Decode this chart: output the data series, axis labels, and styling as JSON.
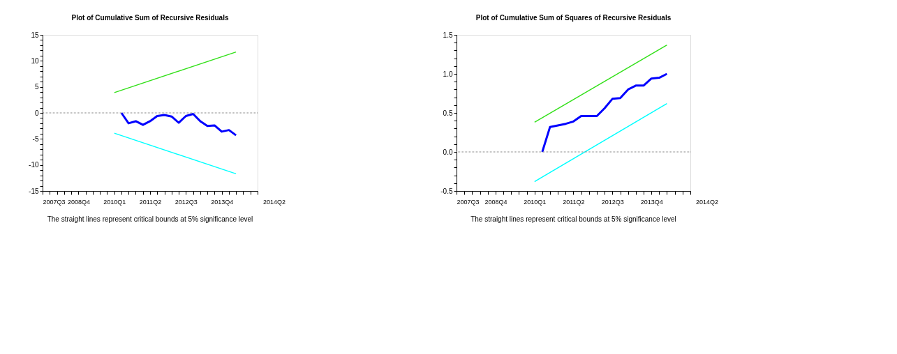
{
  "chart_data": [
    {
      "type": "line",
      "title": "Plot of Cumulative Sum of Recursive Residuals",
      "annotations": [
        "The straight lines represent critical bounds at 5% significance level",
        "2014Q2"
      ],
      "xlim": [
        "2007-07",
        "2015-01"
      ],
      "ylim": [
        -15,
        15
      ],
      "xticks": [
        {
          "value": "2007-07",
          "label": "2007Q3"
        },
        {
          "value": "2007-10",
          "label": null
        },
        {
          "value": "2008-01",
          "label": null
        },
        {
          "value": "2008-04",
          "label": null
        },
        {
          "value": "2008-07",
          "label": null
        },
        {
          "value": "2008-10",
          "label": "2008Q4"
        },
        {
          "value": "2009-01",
          "label": null
        },
        {
          "value": "2009-04",
          "label": null
        },
        {
          "value": "2009-07",
          "label": null
        },
        {
          "value": "2009-10",
          "label": null
        },
        {
          "value": "2010-01",
          "label": "2010Q1"
        },
        {
          "value": "2010-04",
          "label": null
        },
        {
          "value": "2010-07",
          "label": null
        },
        {
          "value": "2010-10",
          "label": null
        },
        {
          "value": "2011-01",
          "label": null
        },
        {
          "value": "2011-04",
          "label": "2011Q2"
        },
        {
          "value": "2011-07",
          "label": null
        },
        {
          "value": "2011-10",
          "label": null
        },
        {
          "value": "2012-01",
          "label": null
        },
        {
          "value": "2012-04",
          "label": null
        },
        {
          "value": "2012-07",
          "label": "2012Q3"
        },
        {
          "value": "2012-10",
          "label": null
        },
        {
          "value": "2013-01",
          "label": null
        },
        {
          "value": "2013-04",
          "label": null
        },
        {
          "value": "2013-07",
          "label": null
        },
        {
          "value": "2013-10",
          "label": "2013Q4"
        },
        {
          "value": "2014-01",
          "label": null
        },
        {
          "value": "2014-04",
          "label": null
        },
        {
          "value": "2014-07",
          "label": null
        },
        {
          "value": "2014-10",
          "label": null
        },
        {
          "value": "2015-01",
          "label": null
        }
      ],
      "yticks": [
        -15,
        {
          "value": -14,
          "label": null
        },
        {
          "value": -13,
          "label": null
        },
        {
          "value": -12,
          "label": null
        },
        {
          "value": -11,
          "label": null
        },
        -10,
        {
          "value": -9,
          "label": null
        },
        {
          "value": -8,
          "label": null
        },
        {
          "value": -7,
          "label": null
        },
        {
          "value": -6,
          "label": null
        },
        -5,
        {
          "value": -4,
          "label": null
        },
        {
          "value": -3,
          "label": null
        },
        {
          "value": -2,
          "label": null
        },
        {
          "value": -1,
          "label": null
        },
        0,
        {
          "value": 1,
          "label": null
        },
        {
          "value": 2,
          "label": null
        },
        {
          "value": 3,
          "label": null
        },
        {
          "value": 4,
          "label": null
        },
        5,
        {
          "value": 6,
          "label": null
        },
        {
          "value": 7,
          "label": null
        },
        {
          "value": 8,
          "label": null
        },
        {
          "value": 9,
          "label": null
        },
        10,
        {
          "value": 11,
          "label": null
        },
        {
          "value": 12,
          "label": null
        },
        {
          "value": 13,
          "label": null
        },
        {
          "value": 14,
          "label": null
        },
        15
      ],
      "grid": false,
      "ref_lines": [
        {
          "axis": "y",
          "value": 0,
          "color": "#808080",
          "line_style": "dotted"
        }
      ],
      "series": [
        {
          "color": "#0000ff",
          "x": [
            "2010-04",
            "2010-07",
            "2010-10",
            "2011-01",
            "2011-04",
            "2011-07",
            "2011-10",
            "2012-01",
            "2012-04",
            "2012-07",
            "2012-10",
            "2013-01",
            "2013-04",
            "2013-07",
            "2013-10",
            "2014-01",
            "2014-04"
          ],
          "values": [
            0.0,
            -2.0,
            -1.6,
            -2.3,
            -1.6,
            -0.6,
            -0.4,
            -0.7,
            -1.9,
            -0.6,
            -0.2,
            -1.6,
            -2.5,
            -2.4,
            -3.6,
            -3.3,
            -4.3
          ]
        },
        {
          "color": "#33e01a",
          "x": [
            "2010-01",
            "2014-04"
          ],
          "values": [
            3.9,
            11.7
          ]
        },
        {
          "color": "#00ffff",
          "x": [
            "2010-01",
            "2014-04"
          ],
          "values": [
            -3.9,
            -11.7
          ]
        }
      ]
    },
    {
      "type": "line",
      "title": "Plot of Cumulative Sum of Squares of Recursive Residuals",
      "annotations": [
        "The straight lines represent critical bounds at 5% significance level",
        "2014Q2"
      ],
      "xlim": [
        "2007-07",
        "2015-01"
      ],
      "ylim": [
        -0.5,
        1.5
      ],
      "xticks": [
        {
          "value": "2007-07",
          "label": "2007Q3"
        },
        {
          "value": "2007-10",
          "label": null
        },
        {
          "value": "2008-01",
          "label": null
        },
        {
          "value": "2008-04",
          "label": null
        },
        {
          "value": "2008-07",
          "label": null
        },
        {
          "value": "2008-10",
          "label": "2008Q4"
        },
        {
          "value": "2009-01",
          "label": null
        },
        {
          "value": "2009-04",
          "label": null
        },
        {
          "value": "2009-07",
          "label": null
        },
        {
          "value": "2009-10",
          "label": null
        },
        {
          "value": "2010-01",
          "label": "2010Q1"
        },
        {
          "value": "2010-04",
          "label": null
        },
        {
          "value": "2010-07",
          "label": null
        },
        {
          "value": "2010-10",
          "label": null
        },
        {
          "value": "2011-01",
          "label": null
        },
        {
          "value": "2011-04",
          "label": "2011Q2"
        },
        {
          "value": "2011-07",
          "label": null
        },
        {
          "value": "2011-10",
          "label": null
        },
        {
          "value": "2012-01",
          "label": null
        },
        {
          "value": "2012-04",
          "label": null
        },
        {
          "value": "2012-07",
          "label": "2012Q3"
        },
        {
          "value": "2012-10",
          "label": null
        },
        {
          "value": "2013-01",
          "label": null
        },
        {
          "value": "2013-04",
          "label": null
        },
        {
          "value": "2013-07",
          "label": null
        },
        {
          "value": "2013-10",
          "label": "2013Q4"
        },
        {
          "value": "2014-01",
          "label": null
        },
        {
          "value": "2014-04",
          "label": null
        },
        {
          "value": "2014-07",
          "label": null
        },
        {
          "value": "2014-10",
          "label": null
        },
        {
          "value": "2015-01",
          "label": null
        }
      ],
      "yticks": [
        -0.5,
        {
          "value": -0.4,
          "label": null
        },
        {
          "value": -0.3,
          "label": null
        },
        {
          "value": -0.2,
          "label": null
        },
        {
          "value": -0.1,
          "label": null
        },
        {
          "value": 0.0,
          "label": "0.0"
        },
        {
          "value": 0.1,
          "label": null
        },
        {
          "value": 0.2,
          "label": null
        },
        {
          "value": 0.3,
          "label": null
        },
        {
          "value": 0.4,
          "label": null
        },
        0.5,
        {
          "value": 0.6,
          "label": null
        },
        {
          "value": 0.7,
          "label": null
        },
        {
          "value": 0.8,
          "label": null
        },
        {
          "value": 0.9,
          "label": null
        },
        {
          "value": 1.0,
          "label": "1.0"
        },
        {
          "value": 1.1,
          "label": null
        },
        {
          "value": 1.2,
          "label": null
        },
        {
          "value": 1.3,
          "label": null
        },
        {
          "value": 1.4,
          "label": null
        },
        1.5
      ],
      "grid": false,
      "ref_lines": [
        {
          "axis": "y",
          "value": 0,
          "color": "#808080",
          "line_style": "dotted"
        }
      ],
      "series": [
        {
          "color": "#0000ff",
          "x": [
            "2010-04",
            "2010-07",
            "2010-10",
            "2011-01",
            "2011-04",
            "2011-07",
            "2011-10",
            "2012-01",
            "2012-04",
            "2012-07",
            "2012-10",
            "2013-01",
            "2013-04",
            "2013-07",
            "2013-10",
            "2014-01",
            "2014-04"
          ],
          "values": [
            0.0,
            0.32,
            0.34,
            0.36,
            0.39,
            0.46,
            0.46,
            0.46,
            0.56,
            0.68,
            0.69,
            0.8,
            0.85,
            0.85,
            0.94,
            0.95,
            1.0
          ]
        },
        {
          "color": "#33e01a",
          "x": [
            "2010-01",
            "2014-04"
          ],
          "values": [
            0.38,
            1.37
          ]
        },
        {
          "color": "#00ffff",
          "x": [
            "2010-01",
            "2014-04"
          ],
          "values": [
            -0.38,
            0.62
          ]
        }
      ]
    }
  ]
}
